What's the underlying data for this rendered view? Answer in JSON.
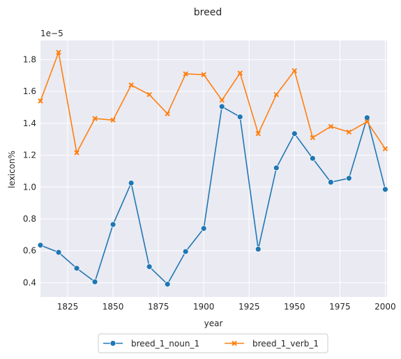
{
  "chart_data": {
    "type": "line",
    "title": "breed",
    "xlabel": "year",
    "ylabel": "lexicon%",
    "y_offset_text": "1e−5",
    "x": [
      1810,
      1820,
      1830,
      1840,
      1850,
      1860,
      1870,
      1880,
      1890,
      1900,
      1910,
      1920,
      1930,
      1940,
      1950,
      1960,
      1970,
      1980,
      1990,
      2000
    ],
    "xlim": [
      1810,
      2001
    ],
    "ylim": [
      0.31,
      1.92
    ],
    "x_ticks": [
      1825,
      1850,
      1875,
      1900,
      1925,
      1950,
      1975,
      2000
    ],
    "x_tick_labels": [
      "1825",
      "1850",
      "1875",
      "1900",
      "1925",
      "1950",
      "1975",
      "2000"
    ],
    "y_ticks": [
      0.4,
      0.6,
      0.8,
      1.0,
      1.2,
      1.4,
      1.6,
      1.8
    ],
    "y_tick_labels": [
      "0.4",
      "0.6",
      "0.8",
      "1.0",
      "1.2",
      "1.4",
      "1.6",
      "1.8"
    ],
    "grid": true,
    "legend_position": "bottom-center",
    "series": [
      {
        "name": "breed_1_noun_1",
        "color": "#1f77b4",
        "marker": "circle",
        "values": [
          0.635,
          0.59,
          0.49,
          0.405,
          0.765,
          1.025,
          0.5,
          0.39,
          0.595,
          0.74,
          1.505,
          1.44,
          0.61,
          1.12,
          1.335,
          1.18,
          1.03,
          1.055,
          1.435,
          0.985
        ]
      },
      {
        "name": "breed_1_verb_1",
        "color": "#ff7f0e",
        "marker": "x",
        "values": [
          1.54,
          1.845,
          1.215,
          1.43,
          1.42,
          1.64,
          1.58,
          1.46,
          1.71,
          1.705,
          1.545,
          1.715,
          1.335,
          1.58,
          1.73,
          1.31,
          1.38,
          1.345,
          1.41,
          1.24
        ]
      }
    ]
  }
}
